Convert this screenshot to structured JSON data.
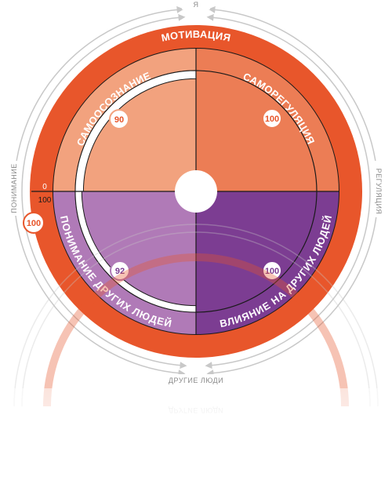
{
  "axes": {
    "top": "Я",
    "bottom": "ДРУГИЕ ЛЮДИ",
    "left": "ПОНИМАНИЕ",
    "right": "РЕГУЛЯЦИЯ"
  },
  "ring": {
    "label": "МОТИВАЦИЯ",
    "score": "100",
    "scale_min": "0",
    "scale_max": "100"
  },
  "quadrants": [
    {
      "label": "САМООСОЗНАНИЕ",
      "score": "90",
      "value": 90
    },
    {
      "label": "САМОРЕГУЛЯЦИЯ",
      "score": "100",
      "value": 100
    },
    {
      "label": "ПОНИМАНИЕ ДРУГИХ ЛЮДЕЙ",
      "score": "92",
      "value": 92
    },
    {
      "label": "ВЛИЯНИЕ НА ДРУГИХ ЛЮДЕЙ",
      "score": "100",
      "value": 100
    }
  ],
  "colors": {
    "ring_orange": "#e8562b",
    "self_light": "#f2a27e",
    "self_mid": "#ec7d55",
    "others_light": "#b07ab7",
    "others_dark": "#7c3d92",
    "arrow_gray": "#c8c8c8"
  }
}
